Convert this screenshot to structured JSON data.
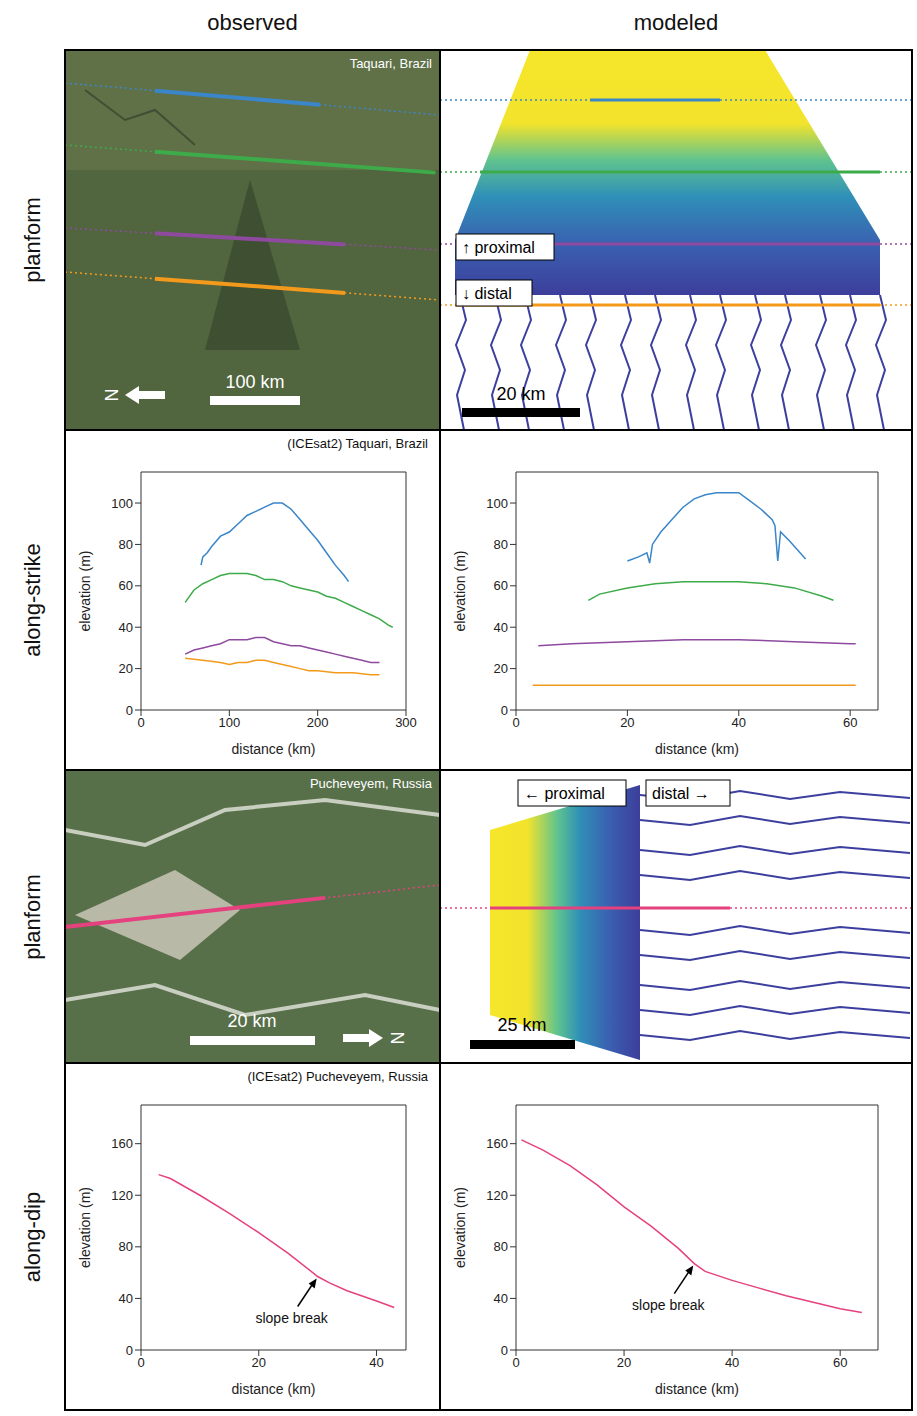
{
  "columns": [
    "observed",
    "modeled"
  ],
  "rows": [
    "planform",
    "along-strike",
    "planform",
    "along-dip"
  ],
  "planforms": [
    {
      "kind": "image",
      "label": "Taquari, Brazil",
      "scale_bar": "100 km",
      "north": "N",
      "transect_colors": [
        "#3a86c8",
        "#3dab4a",
        "#8e4a9e",
        "#f39a1c"
      ]
    },
    {
      "kind": "model",
      "scale_bar": "20 km",
      "proximal": "↑ proximal",
      "distal": "↓ distal",
      "transect_colors": [
        "#3a86c8",
        "#3dab4a",
        "#8e4a9e",
        "#f39a1c"
      ]
    },
    {
      "kind": "image",
      "label": "Pucheveyem, Russia",
      "scale_bar": "20 km",
      "north": "N",
      "transect_colors": [
        "#e6417f"
      ]
    },
    {
      "kind": "model",
      "scale_bar": "25 km",
      "proximal": "← proximal",
      "distal": "distal →",
      "transect_colors": [
        "#e6417f"
      ]
    }
  ],
  "chart_data": [
    {
      "type": "line",
      "title": "(ICEsat2) Taquari, Brazil",
      "xlabel": "distance (km)",
      "ylabel": "elevation (m)",
      "xlim": [
        0,
        300
      ],
      "xticks": [
        0,
        100,
        200,
        300
      ],
      "ylim": [
        0,
        115
      ],
      "yticks": [
        0,
        20,
        40,
        60,
        80,
        100
      ],
      "series": [
        {
          "color": "#3a86c8",
          "x": [
            68,
            70,
            75,
            80,
            90,
            100,
            110,
            120,
            130,
            140,
            150,
            160,
            170,
            180,
            190,
            200,
            210,
            220,
            230,
            235
          ],
          "values": [
            70,
            74,
            76,
            79,
            84,
            86,
            90,
            94,
            96,
            98,
            100,
            100,
            97,
            92,
            87,
            82,
            76,
            70,
            65,
            62
          ]
        },
        {
          "color": "#3dab4a",
          "x": [
            50,
            60,
            70,
            80,
            90,
            100,
            110,
            120,
            130,
            140,
            150,
            160,
            170,
            180,
            190,
            200,
            210,
            220,
            230,
            240,
            250,
            260,
            270,
            280,
            285
          ],
          "values": [
            52,
            58,
            61,
            63,
            65,
            66,
            66,
            66,
            65,
            63,
            63,
            62,
            60,
            59,
            58,
            57,
            55,
            54,
            52,
            50,
            48,
            46,
            44,
            41,
            40
          ]
        },
        {
          "color": "#8e4a9e",
          "x": [
            50,
            60,
            70,
            80,
            90,
            100,
            110,
            120,
            130,
            140,
            150,
            160,
            170,
            180,
            190,
            200,
            210,
            220,
            230,
            240,
            250,
            260,
            270
          ],
          "values": [
            27,
            29,
            30,
            31,
            32,
            34,
            34,
            34,
            35,
            35,
            33,
            32,
            31,
            31,
            30,
            29,
            28,
            27,
            26,
            25,
            24,
            23,
            23
          ]
        },
        {
          "color": "#f39a1c",
          "x": [
            50,
            70,
            90,
            100,
            110,
            120,
            130,
            140,
            150,
            160,
            170,
            180,
            190,
            200,
            220,
            240,
            260,
            270
          ],
          "values": [
            25,
            24,
            23,
            22,
            23,
            23,
            24,
            24,
            23,
            22,
            21,
            20,
            19,
            19,
            18,
            18,
            17,
            17
          ]
        }
      ]
    },
    {
      "type": "line",
      "xlabel": "distance (km)",
      "ylabel": "elevation (m)",
      "xlim": [
        0,
        65
      ],
      "xticks": [
        0,
        20,
        40,
        60
      ],
      "ylim": [
        0,
        115
      ],
      "yticks": [
        0,
        20,
        40,
        60,
        80,
        100
      ],
      "series": [
        {
          "color": "#3a86c8",
          "x": [
            20,
            22,
            23.5,
            24,
            24.5,
            26,
            28,
            30,
            32,
            34,
            36,
            38,
            40,
            42,
            44,
            46,
            46.5,
            47,
            47.5,
            49,
            51,
            52
          ],
          "values": [
            72,
            74,
            76,
            71,
            80,
            86,
            92,
            98,
            102,
            104,
            105,
            105,
            105,
            101,
            97,
            92,
            89,
            72,
            86,
            82,
            76,
            73
          ]
        },
        {
          "color": "#3dab4a",
          "x": [
            13,
            15,
            20,
            25,
            30,
            35,
            40,
            45,
            50,
            55,
            57
          ],
          "values": [
            53,
            56,
            59,
            61,
            62,
            62,
            62,
            61,
            59,
            55,
            53
          ]
        },
        {
          "color": "#8e4a9e",
          "x": [
            4,
            10,
            20,
            30,
            40,
            50,
            60,
            61
          ],
          "values": [
            31,
            32,
            33,
            34,
            34,
            33,
            32,
            32
          ]
        },
        {
          "color": "#f39a1c",
          "x": [
            3,
            61
          ],
          "values": [
            12,
            12
          ]
        }
      ]
    },
    {
      "type": "line",
      "title": "(ICEsat2) Pucheveyem, Russia",
      "xlabel": "distance (km)",
      "ylabel": "elevation (m)",
      "xlim": [
        0,
        45
      ],
      "xticks": [
        0,
        20,
        40
      ],
      "ylim": [
        0,
        190
      ],
      "yticks": [
        0,
        40,
        80,
        120,
        160
      ],
      "series": [
        {
          "color": "#e6417f",
          "x": [
            3,
            5,
            10,
            15,
            20,
            25,
            30,
            32,
            35,
            40,
            43
          ],
          "values": [
            136,
            133,
            120,
            106,
            91,
            75,
            57,
            52,
            46,
            38,
            33
          ]
        }
      ],
      "annotations": [
        {
          "text": "slope break",
          "x": 30,
          "y": 57
        }
      ]
    },
    {
      "type": "line",
      "xlabel": "distance (km)",
      "ylabel": "elevation (m)",
      "xlim": [
        0,
        67
      ],
      "xticks": [
        0,
        20,
        40,
        60
      ],
      "ylim": [
        0,
        190
      ],
      "yticks": [
        0,
        40,
        80,
        120,
        160
      ],
      "series": [
        {
          "color": "#e6417f",
          "x": [
            1,
            5,
            10,
            15,
            20,
            25,
            30,
            33,
            35,
            40,
            45,
            50,
            55,
            60,
            64
          ],
          "values": [
            163,
            155,
            143,
            128,
            111,
            96,
            79,
            67,
            61,
            54,
            48,
            42,
            37,
            32,
            29
          ]
        }
      ],
      "annotations": [
        {
          "text": "slope break",
          "x": 33,
          "y": 67
        }
      ]
    }
  ]
}
